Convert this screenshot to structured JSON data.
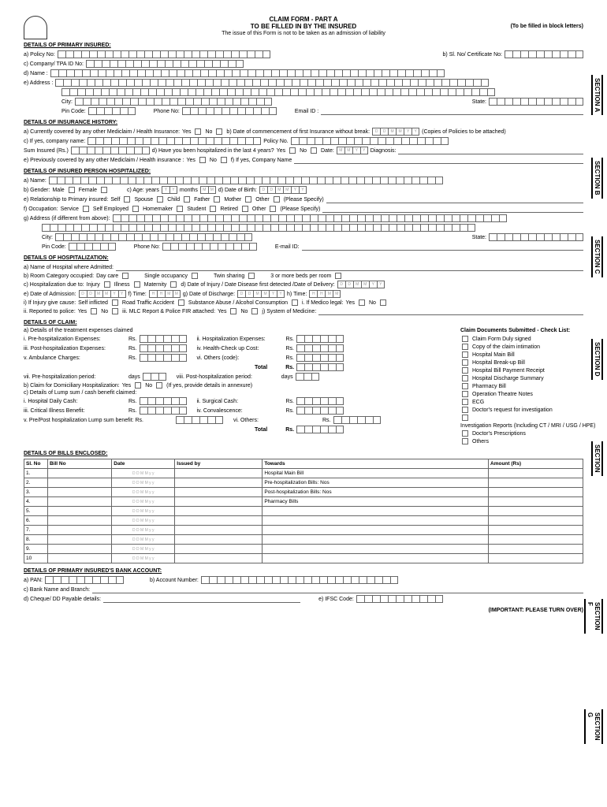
{
  "header": {
    "title": "CLAIM FORM - PART A",
    "subtitle1": "TO BE FILLED IN BY THE INSURED",
    "subtitle2": "The issue of this Form is not to be taken as an admission of liability",
    "fill_note": "(To be filled in block letters)"
  },
  "sections": {
    "primary": "DETAILS OF PRIMARY INSURED:",
    "history": "DETAILS OF INSURANCE HISTORY:",
    "person": "DETAILS OF INSURED PERSON HOSPITALIZED:",
    "hosp": "DETAILS OF HOSPITALIZATION:",
    "claim": "DETAILS OF CLAIM:",
    "bills": "DETAILS OF BILLS ENCLOSED:",
    "bank": "DETAILS OF PRIMARY INSURED'S BANK ACCOUNT:"
  },
  "primary": {
    "a": "a) Policy No:",
    "b": "b) Sl. No/ Certificate No:",
    "c": "c) Company/ TPA ID No:",
    "d": "d) Name :",
    "e": "e) Address :",
    "city": "City:",
    "state": "State:",
    "pin": "Pin Code:",
    "phone": "Phone No:",
    "email": "Email ID :",
    "surname": "SURNAME",
    "first": "FIRSTNAME",
    "middle": "MIDDLENAME"
  },
  "history": {
    "a": "a) Currently covered by any other Mediclaim / Health Insurance:",
    "yes": "Yes",
    "no": "No",
    "b": "b) Date of commencement of first Insurance without break:",
    "copies": "(Copies of Policies to be attached)",
    "c": "c) If yes, company name:",
    "policy": "Policy No.",
    "sum": "Sum Insured (Rs.)",
    "d": "d) Have you been hospitalized in the last 4 years?",
    "date": "Date:",
    "diag": "Diagnosis:",
    "e": "e) Previously covered by any other Mediclaim / Health insurance :",
    "f": "f) If yes, Company Name"
  },
  "person": {
    "a": "a) Name:",
    "b": "b) Gender:",
    "male": "Male",
    "female": "Female",
    "c": "c) Age: years",
    "months": "months",
    "d": "d) Date of Birth:",
    "e": "e) Relationship to Primary insured:",
    "self": "Self",
    "spouse": "Spouse",
    "child": "Child",
    "father": "Father",
    "mother": "Mother",
    "other": "Other",
    "spec": "(Please Specify)",
    "f": "f) Occupation:",
    "service": "Service",
    "selfemp": "Self Employed",
    "home": "Homemaker",
    "student": "Student",
    "retired": "Retired",
    "g": "g) Address (if different from above):",
    "city": "City:",
    "state": "State:",
    "pin": "Pin Code:",
    "phone": "Phone No:",
    "email": "E-mail ID:"
  },
  "hosp": {
    "a": "a) Name of Hospital where Admitted:",
    "b": "b) Room Category occupied:",
    "daycare": "Day care",
    "single": "Single occupancy",
    "twin": "Twin sharing",
    "more": "3 or more beds per room",
    "c": "c) Hospitalization due to:",
    "injury": "Injury",
    "illness": "Illness",
    "maternity": "Maternity",
    "d": "d) Date of Injury / Date Disease first detected /Date of Delivery:",
    "e": "e) Date of Admission:",
    "f": "f) Time:",
    "g": "g) Date of Discharge:",
    "h": "h) Time:",
    "i": "i) If Injury give cause:",
    "selfin": "Self inflicted",
    "rta": "Road Traffic Accident",
    "sub": "Substance Abuse / Alcohol Consumption",
    "med": "i. If Medico legal:",
    "ii": "ii. Reported to police:",
    "iii": "iii. MLC Report & Police FIR attached:",
    "j": "j) System of Medicine:"
  },
  "claim": {
    "a": "a) Details of the treatment expenses claimed",
    "i": "i. Pre-hospitalization Expenses:",
    "ii": "ii. Hospitalization Expenses:",
    "iii": "iii. Post-hospitalization Expenses:",
    "iv": "iv. Health-Check up Cost:",
    "v": "v. Ambulance Charges:",
    "vi": "vi. Others (code):",
    "total": "Total",
    "rs": "Rs.",
    "vii": "vii. Pre-hospitalization period:",
    "viii": "viii. Post-hospitalization period:",
    "days": "days",
    "b": "b) Claim for Domiciliary Hospitalization:",
    "bnote": "(If yes, provide details in annexure)",
    "c": "c) Details of Lump sum / cash benefit claimed:",
    "hdc": "i. Hospital Daily Cash:",
    "sc": "ii. Surgical Cash:",
    "cib": "iii. Critical Illness Benefit:",
    "conv": "iv. Convalescence:",
    "pp": "v. Pre/Post hospitalization Lump sum benefit: Rs.",
    "oth": "vi. Others:",
    "checklist_title": "Claim Documents Submitted - Check List:",
    "checklist": [
      "Claim Form Duly signed",
      "Copy of the claim intimation",
      "Hospital Main Bill",
      "Hospital Break-up Bill",
      "Hospital Bill Payment Receipt",
      "Hospital Discharge Summary",
      "Pharmacy Bill",
      "Operation Theatre Notes",
      "ECG",
      "Doctor's request for investigation",
      "Investigation Reports (Including CT / MRI / USG / HPE)",
      "Doctor's Prescriptions",
      "Others"
    ]
  },
  "bills": {
    "headers": [
      "Sl. No",
      "Bill No",
      "Date",
      "Issued by",
      "Towards",
      "Amount (Rs)"
    ],
    "towards": [
      "Hospital Main Bill",
      "Pre-hospitalization Bills:    Nos",
      "Post-hospitalization Bills:    Nos",
      "Pharmacy Bills",
      "",
      "",
      "",
      "",
      "",
      ""
    ],
    "rows": [
      "1.",
      "2.",
      "3.",
      "4.",
      "5.",
      "6.",
      "7.",
      "8.",
      "9.",
      "10"
    ]
  },
  "bank": {
    "a": "a) PAN:",
    "b": "b) Account Number:",
    "c": "c) Bank Name and Branch:",
    "d": "d) Cheque/ DD Payable details:",
    "e": "e) IFSC Code:"
  },
  "footer": "(IMPORTANT: PLEASE TURN OVER)",
  "tabs": {
    "a": "SECTION A",
    "b": "SECTION B",
    "c": "SECTION C",
    "d": "SECTION D",
    "e": "SECTION",
    "f": "SECTION F",
    "g": "SECTION G"
  }
}
